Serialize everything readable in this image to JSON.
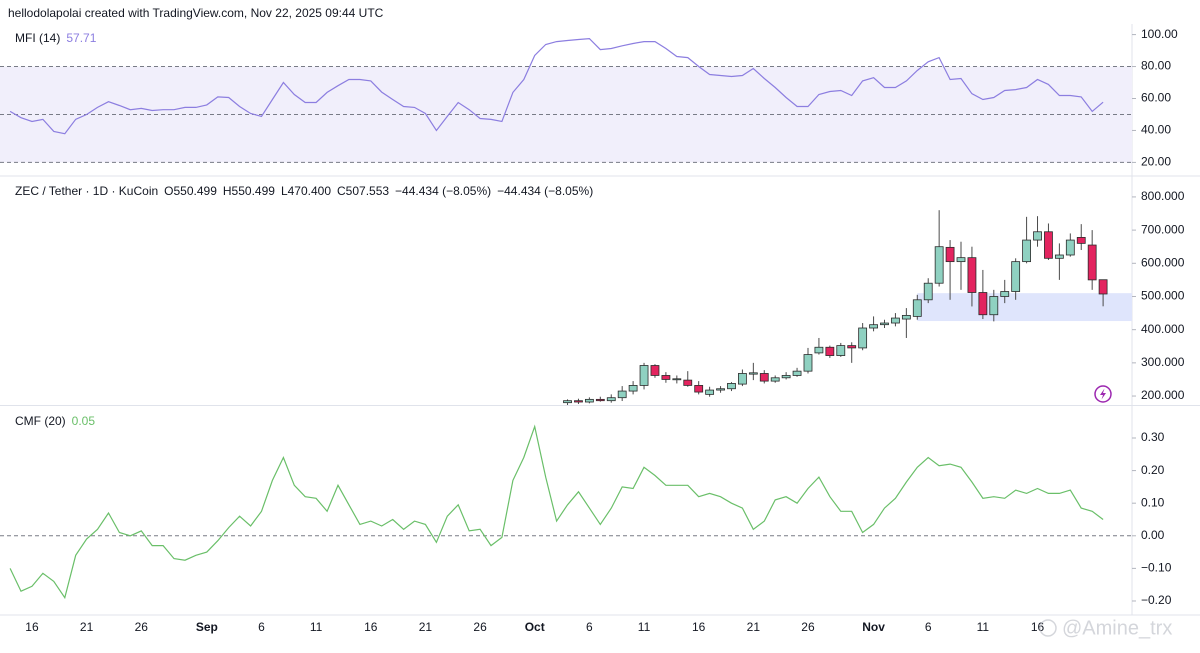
{
  "header": "hellodolapolai created with TradingView.com, Nov 22, 2025 09:44 UTC",
  "watermark": "@Amine_trx",
  "x_axis": {
    "categories": [
      "Aug 14",
      "Aug 15",
      "Aug 16",
      "Aug 17",
      "Aug 18",
      "Aug 19",
      "Aug 20",
      "Aug 21",
      "Aug 22",
      "Aug 23",
      "Aug 24",
      "Aug 25",
      "Aug 26",
      "Aug 27",
      "Aug 28",
      "Aug 29",
      "Aug 30",
      "Aug 31",
      "Sep 1",
      "Sep 2",
      "Sep 3",
      "Sep 4",
      "Sep 5",
      "Sep 6",
      "Sep 7",
      "Sep 8",
      "Sep 9",
      "Sep 10",
      "Sep 11",
      "Sep 12",
      "Sep 13",
      "Sep 14",
      "Sep 15",
      "Sep 16",
      "Sep 17",
      "Sep 18",
      "Sep 19",
      "Sep 20",
      "Sep 21",
      "Sep 22",
      "Sep 23",
      "Sep 24",
      "Sep 25",
      "Sep 26",
      "Sep 27",
      "Sep 28",
      "Sep 29",
      "Sep 30",
      "Oct 1",
      "Oct 2",
      "Oct 3",
      "Oct 4",
      "Oct 5",
      "Oct 6",
      "Oct 7",
      "Oct 8",
      "Oct 9",
      "Oct 10",
      "Oct 11",
      "Oct 12",
      "Oct 13",
      "Oct 14",
      "Oct 15",
      "Oct 16",
      "Oct 17",
      "Oct 18",
      "Oct 19",
      "Oct 20",
      "Oct 21",
      "Oct 22",
      "Oct 23",
      "Oct 24",
      "Oct 25",
      "Oct 26",
      "Oct 27",
      "Oct 28",
      "Oct 29",
      "Oct 30",
      "Oct 31",
      "Nov 1",
      "Nov 2",
      "Nov 3",
      "Nov 4",
      "Nov 5",
      "Nov 6",
      "Nov 7",
      "Nov 8",
      "Nov 9",
      "Nov 10",
      "Nov 11",
      "Nov 12",
      "Nov 13",
      "Nov 14",
      "Nov 15",
      "Nov 16",
      "Nov 17",
      "Nov 18",
      "Nov 19",
      "Nov 20",
      "Nov 21",
      "Nov 22"
    ],
    "ticks": [
      {
        "value": "Aug 16",
        "label": "16"
      },
      {
        "value": "Aug 21",
        "label": "21"
      },
      {
        "value": "Aug 26",
        "label": "26"
      },
      {
        "value": "Sep 1",
        "label": "Sep"
      },
      {
        "value": "Sep 6",
        "label": "6"
      },
      {
        "value": "Sep 11",
        "label": "11"
      },
      {
        "value": "Sep 16",
        "label": "16"
      },
      {
        "value": "Sep 21",
        "label": "21"
      },
      {
        "value": "Sep 26",
        "label": "26"
      },
      {
        "value": "Oct 1",
        "label": "Oct"
      },
      {
        "value": "Oct 6",
        "label": "6"
      },
      {
        "value": "Oct 11",
        "label": "11"
      },
      {
        "value": "Oct 16",
        "label": "16"
      },
      {
        "value": "Oct 21",
        "label": "21"
      },
      {
        "value": "Oct 26",
        "label": "26"
      },
      {
        "value": "Nov 1",
        "label": "Nov"
      },
      {
        "value": "Nov 6",
        "label": "6"
      },
      {
        "value": "Nov 11",
        "label": "11"
      },
      {
        "value": "Nov 16",
        "label": "16"
      }
    ]
  },
  "chart_data": [
    {
      "type": "line",
      "title": "MFI (14)",
      "color": "#8c7ee0",
      "values": [
        51.9,
        48,
        45.6,
        46.9,
        39.4,
        38,
        47,
        50,
        54.4,
        58,
        55.6,
        53,
        53.8,
        52.5,
        53,
        53,
        54.4,
        54.4,
        56,
        61,
        60.6,
        55,
        50.6,
        48.8,
        59.4,
        70,
        62.5,
        57.5,
        57.5,
        63.8,
        68,
        71.9,
        71.9,
        71,
        64,
        59.4,
        55,
        54.4,
        50.6,
        40,
        48.8,
        57.5,
        53,
        47.5,
        46.9,
        45.6,
        63.8,
        71.9,
        86.9,
        93.8,
        95.6,
        96.3,
        96.9,
        97.5,
        90.6,
        91.3,
        93,
        94.4,
        95.6,
        95.6,
        91.3,
        86.3,
        85.6,
        80,
        75,
        74.4,
        73.8,
        74.4,
        78.8,
        72.5,
        66.9,
        60.6,
        55,
        55,
        62.5,
        64.4,
        65,
        61.9,
        71,
        73,
        66.9,
        66.9,
        71,
        77.5,
        83,
        85.6,
        71.9,
        72.5,
        63,
        59.4,
        60.6,
        65,
        65.6,
        66.9,
        71.9,
        68.8,
        61.9,
        61.9,
        61,
        51.9,
        57.71
      ],
      "ylim": [
        14,
        106
      ],
      "yticks": [
        {
          "value": 100,
          "label": "100.00"
        },
        {
          "value": 80,
          "label": "80.00"
        },
        {
          "value": 60,
          "label": "60.00"
        },
        {
          "value": 40,
          "label": "40.00"
        },
        {
          "value": 20,
          "label": "20.00"
        }
      ],
      "band": [
        20,
        80
      ],
      "band_color": "#f1effb",
      "levels": [
        80,
        50,
        20
      ]
    },
    {
      "type": "candlestick",
      "title": "ZEC / Tether · 1D · KuCoin",
      "legend_fields": [
        "O550.499",
        "H550.499",
        "L470.400",
        "C507.553",
        "−44.434 (−8.05%)",
        "−44.434 (−8.05%)"
      ],
      "up_color": "#8fd1c1",
      "down_color": "#e3245f",
      "x": [
        "Oct 4",
        "Oct 5",
        "Oct 6",
        "Oct 7",
        "Oct 8",
        "Oct 9",
        "Oct 10",
        "Oct 11",
        "Oct 12",
        "Oct 13",
        "Oct 14",
        "Oct 15",
        "Oct 16",
        "Oct 17",
        "Oct 18",
        "Oct 19",
        "Oct 20",
        "Oct 21",
        "Oct 22",
        "Oct 23",
        "Oct 24",
        "Oct 25",
        "Oct 26",
        "Oct 27",
        "Oct 28",
        "Oct 29",
        "Oct 30",
        "Oct 31",
        "Nov 1",
        "Nov 2",
        "Nov 3",
        "Nov 4",
        "Nov 5",
        "Nov 6",
        "Nov 7",
        "Nov 8",
        "Nov 9",
        "Nov 10",
        "Nov 11",
        "Nov 12",
        "Nov 13",
        "Nov 14",
        "Nov 15",
        "Nov 16",
        "Nov 17",
        "Nov 18",
        "Nov 19",
        "Nov 20",
        "Nov 21",
        "Nov 22"
      ],
      "open": [
        180,
        186,
        182,
        190,
        186,
        195,
        215,
        232,
        292,
        262,
        250,
        248,
        232,
        205,
        218,
        222,
        236,
        266,
        268,
        245,
        255,
        262,
        275,
        330,
        347,
        322,
        352,
        345,
        405,
        415,
        420,
        432,
        440,
        490,
        540,
        648,
        605,
        617,
        512,
        445,
        500,
        515,
        605,
        670,
        695,
        615,
        625,
        678,
        655,
        550.499
      ],
      "high": [
        190,
        192,
        196,
        198,
        205,
        230,
        245,
        300,
        296,
        272,
        262,
        275,
        245,
        228,
        230,
        242,
        280,
        300,
        278,
        262,
        272,
        285,
        345,
        375,
        352,
        360,
        362,
        420,
        440,
        430,
        450,
        465,
        505,
        555,
        760,
        670,
        665,
        650,
        580,
        520,
        550,
        615,
        740,
        742,
        720,
        660,
        690,
        718,
        700,
        550.499
      ],
      "low": [
        170,
        176,
        178,
        183,
        180,
        185,
        205,
        220,
        255,
        240,
        238,
        228,
        205,
        198,
        210,
        215,
        230,
        248,
        238,
        240,
        250,
        258,
        268,
        325,
        315,
        318,
        300,
        338,
        395,
        405,
        410,
        375,
        430,
        480,
        530,
        490,
        520,
        470,
        432,
        425,
        480,
        490,
        600,
        650,
        610,
        550,
        620,
        640,
        520,
        470.4
      ],
      "close": [
        186,
        182,
        190,
        186,
        195,
        215,
        232,
        292,
        262,
        250,
        252,
        232,
        212,
        218,
        222,
        238,
        268,
        270,
        245,
        255,
        262,
        275,
        325,
        347,
        322,
        352,
        345,
        405,
        415,
        420,
        435,
        443,
        490,
        540,
        650,
        605,
        617,
        512,
        445,
        500,
        515,
        605,
        670,
        695,
        615,
        625,
        670,
        660,
        550,
        507.553
      ],
      "ylim": [
        173,
        851
      ],
      "yticks": [
        {
          "value": 800,
          "label": "800.000"
        },
        {
          "value": 700,
          "label": "700.000"
        },
        {
          "value": 600,
          "label": "600.000"
        },
        {
          "value": 500,
          "label": "500.000"
        },
        {
          "value": 400,
          "label": "400.000"
        },
        {
          "value": 300,
          "label": "300.000"
        },
        {
          "value": 200,
          "label": "200.000"
        }
      ],
      "zones": [
        {
          "from": "Nov 5",
          "low": 426,
          "high": 510,
          "color": "#dfe5fc"
        }
      ]
    },
    {
      "type": "line",
      "title": "CMF (20)",
      "color": "#6abf69",
      "values": [
        -0.1,
        -0.17,
        -0.155,
        -0.115,
        -0.14,
        -0.19,
        -0.06,
        -0.01,
        0.02,
        0.07,
        0.01,
        0,
        0.015,
        -0.03,
        -0.03,
        -0.07,
        -0.075,
        -0.06,
        -0.05,
        -0.015,
        0.025,
        0.06,
        0.03,
        0.075,
        0.17,
        0.24,
        0.155,
        0.12,
        0.115,
        0.075,
        0.155,
        0.095,
        0.035,
        0.045,
        0.03,
        0.05,
        0.02,
        0.045,
        0.035,
        -0.02,
        0.06,
        0.095,
        0.015,
        0.02,
        -0.03,
        -0.005,
        0.17,
        0.24,
        0.335,
        0.18,
        0.045,
        0.095,
        0.135,
        0.085,
        0.035,
        0.085,
        0.15,
        0.145,
        0.21,
        0.185,
        0.155,
        0.155,
        0.155,
        0.12,
        0.13,
        0.12,
        0.1,
        0.085,
        0.02,
        0.045,
        0.11,
        0.12,
        0.1,
        0.145,
        0.18,
        0.12,
        0.075,
        0.075,
        0.01,
        0.035,
        0.085,
        0.115,
        0.165,
        0.21,
        0.24,
        0.215,
        0.22,
        0.21,
        0.165,
        0.115,
        0.12,
        0.115,
        0.14,
        0.13,
        0.145,
        0.13,
        0.13,
        0.14,
        0.085,
        0.075,
        0.05
      ],
      "ylim": [
        -0.243,
        0.392
      ],
      "yticks": [
        {
          "value": 0.3,
          "label": "0.30"
        },
        {
          "value": 0.2,
          "label": "0.20"
        },
        {
          "value": 0.1,
          "label": "0.10"
        },
        {
          "value": 0,
          "label": "0.00"
        },
        {
          "value": -0.1,
          "label": "−0.10"
        },
        {
          "value": -0.2,
          "label": "−0.20"
        }
      ],
      "levels": [
        0
      ]
    }
  ]
}
